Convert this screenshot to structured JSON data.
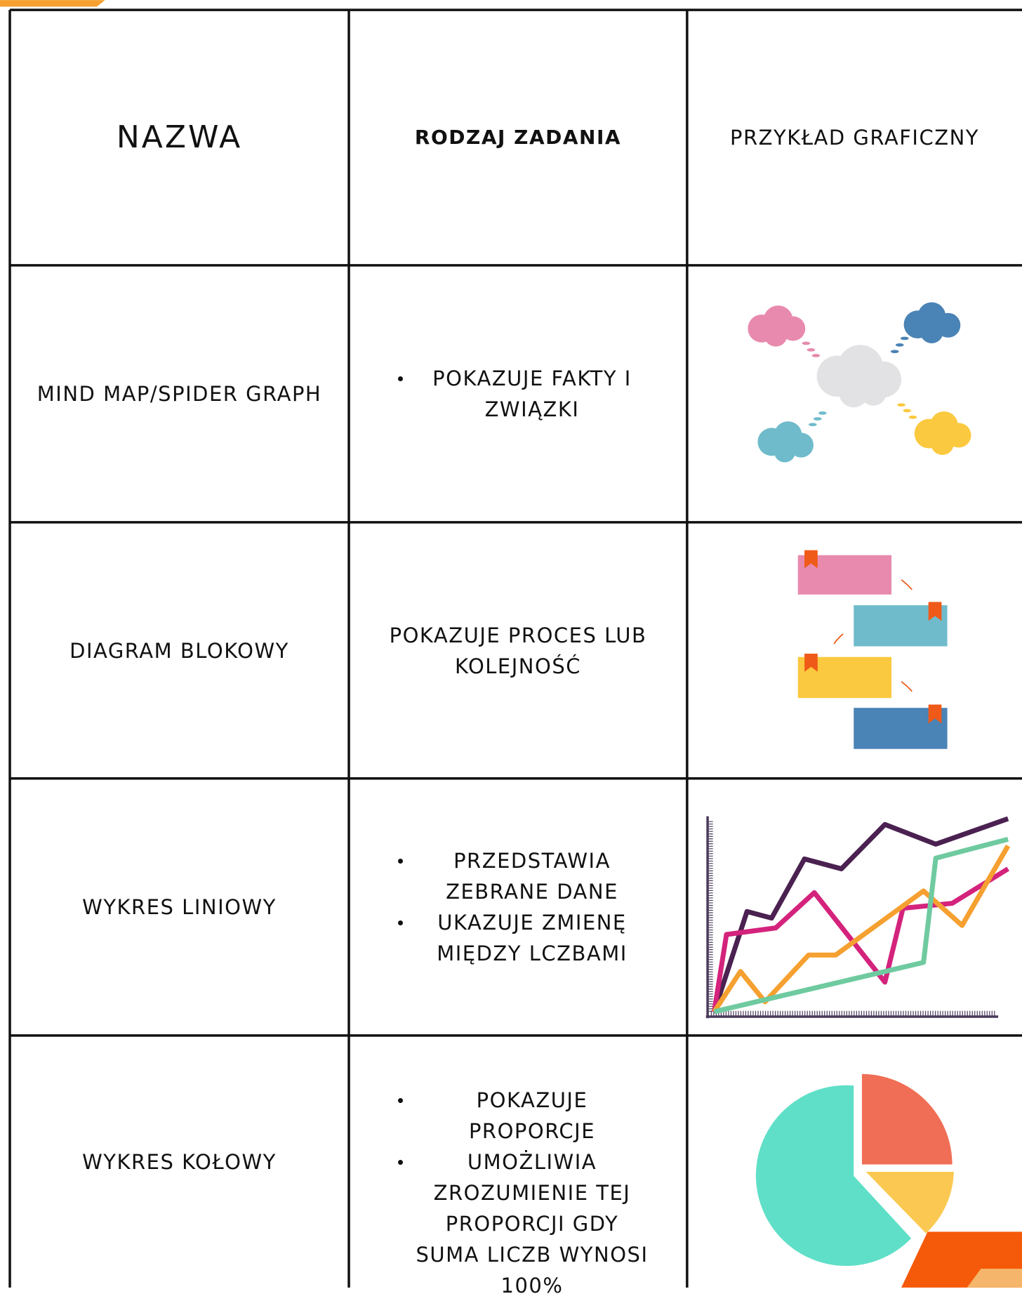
{
  "header": {
    "columns": [
      "NAZWA",
      "RODZAJ ZADANIA",
      "PRZYKŁAD GRAFICZNY"
    ]
  },
  "table": {
    "rows": [
      {
        "name": "MIND MAP/SPIDER GRAPH",
        "bullets": [
          "POKAZUJE FAKTY I ZWIĄZKI"
        ]
      },
      {
        "name": "DIAGRAM BLOKOWY",
        "text": "POKAZUJE PROCES LUB KOLEJNOŚĆ"
      },
      {
        "name": "WYKRES LINIOWY",
        "bullets": [
          "PRZEDSTAWIA ZEBRANE DANE",
          "UKAZUJE ZMIENĘ MIĘDZY LCZBAMI"
        ]
      },
      {
        "name": "WYKRES KOŁOWY",
        "bullets": [
          "POKAZUJE PROPORCJE",
          "UMOŻLIWIA ZROZUMIENIE TEJ PROPORCJI GDY SUMA LICZB WYNOSI 100%"
        ]
      }
    ]
  }
}
